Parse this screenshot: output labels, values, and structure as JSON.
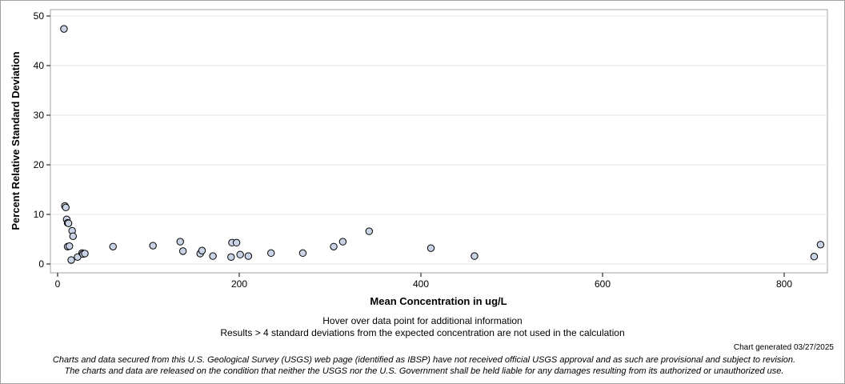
{
  "chart_data": {
    "type": "scatter",
    "title": "",
    "xlabel": "Mean Concentration in ug/L",
    "ylabel": "Percent Relative Standard Deviation",
    "xlim": [
      0,
      840
    ],
    "ylim": [
      0,
      50
    ],
    "xticks": [
      0,
      200,
      400,
      600,
      800
    ],
    "yticks": [
      0,
      10,
      20,
      30,
      40,
      50
    ],
    "grid": true,
    "marker_fill": "#c8d3e6",
    "marker_edge": "#000000",
    "points": [
      {
        "x": 7,
        "y": 47.4
      },
      {
        "x": 8,
        "y": 11.7
      },
      {
        "x": 9,
        "y": 11.4
      },
      {
        "x": 10,
        "y": 9.0
      },
      {
        "x": 11,
        "y": 8.3
      },
      {
        "x": 12,
        "y": 8.2
      },
      {
        "x": 11,
        "y": 3.5
      },
      {
        "x": 13,
        "y": 3.6
      },
      {
        "x": 15,
        "y": 0.8
      },
      {
        "x": 16,
        "y": 6.7
      },
      {
        "x": 17,
        "y": 5.6
      },
      {
        "x": 22,
        "y": 1.4
      },
      {
        "x": 27,
        "y": 2.2
      },
      {
        "x": 28,
        "y": 2.0
      },
      {
        "x": 30,
        "y": 2.1
      },
      {
        "x": 61,
        "y": 3.5
      },
      {
        "x": 105,
        "y": 3.7
      },
      {
        "x": 135,
        "y": 4.5
      },
      {
        "x": 138,
        "y": 2.6
      },
      {
        "x": 157,
        "y": 2.1
      },
      {
        "x": 159,
        "y": 2.7
      },
      {
        "x": 171,
        "y": 1.6
      },
      {
        "x": 191,
        "y": 1.4
      },
      {
        "x": 192,
        "y": 4.3
      },
      {
        "x": 197,
        "y": 4.3
      },
      {
        "x": 201,
        "y": 1.9
      },
      {
        "x": 210,
        "y": 1.6
      },
      {
        "x": 235,
        "y": 2.2
      },
      {
        "x": 270,
        "y": 2.2
      },
      {
        "x": 304,
        "y": 3.5
      },
      {
        "x": 314,
        "y": 4.5
      },
      {
        "x": 343,
        "y": 6.6
      },
      {
        "x": 411,
        "y": 3.2
      },
      {
        "x": 459,
        "y": 1.6
      },
      {
        "x": 833,
        "y": 1.5
      },
      {
        "x": 840,
        "y": 3.9
      }
    ]
  },
  "notes": {
    "hover": "Hover over data point for additional information",
    "results": "Results > 4 standard deviations from the expected concentration are not used in the calculation"
  },
  "generated": "Chart generated 03/27/2025",
  "disclaimer": {
    "line1": "Charts and data secured from this U.S. Geological Survey (USGS) web page (identified as IBSP) have not received official USGS approval and as such are provisional and subject to revision.",
    "line2": "The charts and data are released on the condition that neither the USGS nor the U.S. Government shall be held liable for any damages resulting from its authorized or unauthorized use."
  }
}
